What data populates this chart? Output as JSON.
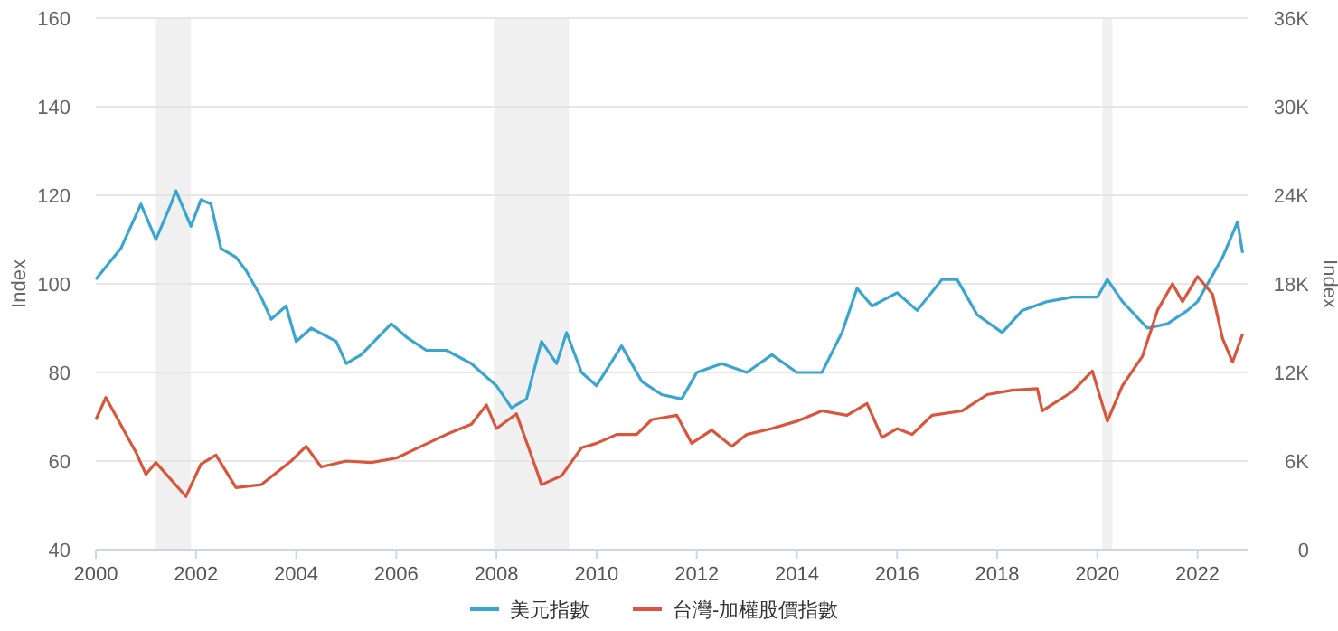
{
  "chart_data": {
    "type": "line",
    "ylabel": "Index",
    "y2label": "Index",
    "xlim": [
      2000,
      2023
    ],
    "xticks": [
      2000,
      2002,
      2004,
      2006,
      2008,
      2010,
      2012,
      2014,
      2016,
      2018,
      2020,
      2022
    ],
    "ylim": [
      40,
      160
    ],
    "yticks": [
      40,
      60,
      80,
      100,
      120,
      140,
      160
    ],
    "y2lim": [
      0,
      36000
    ],
    "y2ticks": [
      0,
      {
        "value": 6000,
        "label": "6K"
      },
      {
        "value": 12000,
        "label": "12K"
      },
      {
        "value": 18000,
        "label": "18K"
      },
      {
        "value": 24000,
        "label": "24K"
      },
      {
        "value": 30000,
        "label": "30K"
      },
      {
        "value": 36000,
        "label": "36K"
      }
    ],
    "grid": "y",
    "legend": "bottom",
    "line_style": "solid",
    "marker": "none",
    "bands": [
      {
        "axis": "x",
        "from": 2001.2,
        "to": 2001.9,
        "color": "#f0f0f0"
      },
      {
        "axis": "x",
        "from": 2007.95,
        "to": 2009.45,
        "color": "#f0f0f0"
      },
      {
        "axis": "x",
        "from": 2020.1,
        "to": 2020.3,
        "color": "#f0f0f0"
      }
    ],
    "series": [
      {
        "name": "美元指數",
        "color": "#3aa6cf",
        "x": [
          2000,
          2000.5,
          2000.9,
          2001.2,
          2001.5,
          2001.6,
          2001.9,
          2002.1,
          2002.3,
          2002.5,
          2002.8,
          2003,
          2003.3,
          2003.5,
          2003.8,
          2004,
          2004.3,
          2004.8,
          2005,
          2005.3,
          2005.9,
          2006.2,
          2006.6,
          2007,
          2007.5,
          2008,
          2008.3,
          2008.6,
          2008.9,
          2009.2,
          2009.4,
          2009.7,
          2010,
          2010.5,
          2010.9,
          2011.3,
          2011.7,
          2012,
          2012.5,
          2013,
          2013.5,
          2014,
          2014.5,
          2014.9,
          2015.2,
          2015.5,
          2016,
          2016.4,
          2016.9,
          2017.2,
          2017.6,
          2018.1,
          2018.5,
          2019,
          2019.5,
          2020,
          2020.2,
          2020.5,
          2021,
          2021.4,
          2021.8,
          2022,
          2022.5,
          2022.8,
          2022.9
        ],
        "values": [
          101,
          108,
          118,
          110,
          118,
          121,
          113,
          119,
          118,
          108,
          106,
          103,
          97,
          92,
          95,
          87,
          90,
          87,
          82,
          84,
          91,
          88,
          85,
          85,
          82,
          77,
          72,
          74,
          87,
          82,
          89,
          80,
          77,
          86,
          78,
          75,
          74,
          80,
          82,
          80,
          84,
          80,
          80,
          89,
          99,
          95,
          98,
          94,
          101,
          101,
          93,
          89,
          94,
          96,
          97,
          97,
          101,
          96,
          90,
          91,
          94,
          96,
          106,
          114,
          107
        ]
      },
      {
        "name": "台灣-加權股價指數",
        "color": "#d9553b",
        "axis": "y2",
        "x": [
          2000,
          2000.2,
          2000.8,
          2001,
          2001.2,
          2001.8,
          2002.1,
          2002.4,
          2002.8,
          2003.3,
          2003.9,
          2004.2,
          2004.5,
          2005,
          2005.5,
          2006,
          2006.5,
          2007,
          2007.5,
          2007.8,
          2008,
          2008.4,
          2008.8,
          2008.9,
          2009.3,
          2009.7,
          2010,
          2010.4,
          2010.8,
          2011.1,
          2011.6,
          2011.9,
          2012.3,
          2012.7,
          2013,
          2013.5,
          2014,
          2014.5,
          2015,
          2015.4,
          2015.7,
          2016,
          2016.3,
          2016.7,
          2017.3,
          2017.8,
          2018.3,
          2018.8,
          2018.9,
          2019.5,
          2019.9,
          2020.2,
          2020.5,
          2020.9,
          2021.2,
          2021.5,
          2021.7,
          2022,
          2022.3,
          2022.5,
          2022.7,
          2022.9
        ],
        "values": [
          8800,
          10300,
          6600,
          5100,
          5900,
          3600,
          5800,
          6400,
          4200,
          4400,
          6000,
          7000,
          5600,
          6000,
          5900,
          6200,
          7000,
          7800,
          8500,
          9800,
          8200,
          9200,
          5400,
          4400,
          5000,
          6900,
          7200,
          7800,
          7800,
          8800,
          9100,
          7200,
          8100,
          7000,
          7800,
          8200,
          8700,
          9400,
          9100,
          9900,
          7600,
          8200,
          7800,
          9100,
          9400,
          10500,
          10800,
          10900,
          9400,
          10700,
          12100,
          8700,
          11100,
          13100,
          16200,
          18000,
          16800,
          18500,
          17300,
          14300,
          12700,
          14600
        ]
      }
    ]
  }
}
